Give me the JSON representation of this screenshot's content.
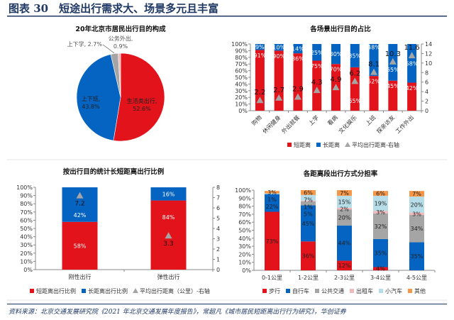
{
  "header": {
    "title": "图表 30　短途出行需求大、场景多元且丰富"
  },
  "footer": {
    "source": "资料来源：北京交通发展研究院《2021 年北京交通发展年度报告》，常超凡《城市居民短距离出行行为研究》，华创证券"
  },
  "colors": {
    "red": "#e3131b",
    "blue": "#0563c1",
    "gray": "#a5a5a5",
    "pink": "#f2b8ba",
    "lightblue": "#b7dee8",
    "orange": "#f79646",
    "title": "#1f3864"
  },
  "chart_data": [
    {
      "type": "pie",
      "title": "20年北京市居民出行目的构成",
      "slices": [
        {
          "name": "生活类出行",
          "value": 52.6,
          "label": "52.6%",
          "color": "#e3131b"
        },
        {
          "name": "上下班",
          "value": 43.8,
          "label": "43.8%",
          "color": "#0563c1"
        },
        {
          "name": "上下学",
          "value": 2.7,
          "label": "2.7%",
          "color": "#a5a5a5"
        },
        {
          "name": "公务外出",
          "value": 0.9,
          "label": "0.9%",
          "color": "#f2b8ba"
        }
      ]
    },
    {
      "type": "bar",
      "stacked": true,
      "title": "各场景出行目的占比",
      "categories": [
        "购物",
        "休闲健身",
        "外出就餐",
        "上学",
        "看病",
        "文化娱乐",
        "上班",
        "探亲访友",
        "工作外出"
      ],
      "series": [
        {
          "name": "短距离",
          "values": [
            91,
            90,
            86,
            75,
            70,
            65,
            52,
            45,
            42
          ],
          "color": "#e3131b"
        },
        {
          "name": "长距离",
          "values": [
            9,
            10,
            14,
            25,
            30,
            35,
            48,
            55,
            58
          ],
          "color": "#0563c1"
        },
        {
          "name": "平均出行距离-右轴",
          "values": [
            2.2,
            2.7,
            2.9,
            4.3,
            4.9,
            6.2,
            8.1,
            10.3,
            11.6
          ],
          "color": "#a5a5a5",
          "marker": "triangle",
          "axis": "right"
        }
      ],
      "ylim": [
        0,
        100
      ],
      "yticks": [
        "0%",
        "10%",
        "20%",
        "30%",
        "40%",
        "50%",
        "60%",
        "70%",
        "80%",
        "90%",
        "100%"
      ],
      "y2lim": [
        0,
        14
      ],
      "y2ticks": [
        "0",
        "2",
        "4",
        "6",
        "8",
        "10",
        "12",
        "14"
      ],
      "legend": "bottom"
    },
    {
      "type": "bar",
      "stacked": true,
      "title": "按出行目的统计长短距离出行比例",
      "categories": [
        "刚性出行",
        "弹性出行"
      ],
      "series": [
        {
          "name": "短距离出行比例",
          "values": [
            58,
            84
          ],
          "color": "#e3131b"
        },
        {
          "name": "长距离出行比例",
          "values": [
            42,
            16
          ],
          "color": "#0563c1"
        },
        {
          "name": "平均出行距离（公里）-右轴",
          "values": [
            7.2,
            3.3
          ],
          "color": "#a5a5a5",
          "marker": "triangle",
          "axis": "right"
        }
      ],
      "ylim": [
        0,
        100
      ],
      "yticks": [
        "0%",
        "10%",
        "20%",
        "30%",
        "40%",
        "50%",
        "60%",
        "70%",
        "80%",
        "90%",
        "100%"
      ],
      "y2lim": [
        0,
        8
      ],
      "y2ticks": [
        "0",
        "1",
        "2",
        "3",
        "4",
        "5",
        "6",
        "7",
        "8"
      ],
      "legend": "bottom"
    },
    {
      "type": "bar",
      "stacked": true,
      "title": "各距离段出行方式分担率",
      "categories": [
        "0-1公里",
        "1-2公里",
        "2-3公里",
        "3-4公里",
        "4-5公里"
      ],
      "series": [
        {
          "name": "步行",
          "values": [
            73,
            36,
            12,
            4,
            0
          ],
          "color": "#e3131b"
        },
        {
          "name": "自行车",
          "values": [
            22,
            45,
            44,
            35,
            35
          ],
          "color": "#0563c1"
        },
        {
          "name": "公共交通",
          "values": [
            0,
            5,
            20,
            32,
            34
          ],
          "color": "#a5a5a5"
        },
        {
          "name": "出租车",
          "values": [
            0,
            1,
            2,
            3,
            3
          ],
          "color": "#f2b8ba"
        },
        {
          "name": "小汽车",
          "values": [
            1,
            7,
            15,
            19,
            20
          ],
          "color": "#b7dee8"
        },
        {
          "name": "其他",
          "values": [
            3,
            6,
            7,
            6,
            7
          ],
          "color": "#f79646"
        }
      ],
      "ylim": [
        0,
        100
      ],
      "yticks": [
        "0%",
        "10%",
        "20%",
        "30%",
        "40%",
        "50%",
        "60%",
        "70%",
        "80%",
        "90%",
        "100%"
      ],
      "legend": "bottom"
    }
  ]
}
